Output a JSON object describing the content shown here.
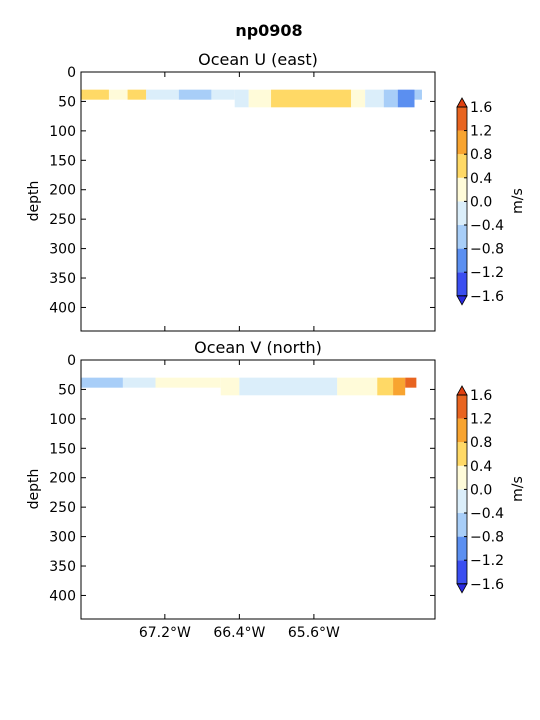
{
  "figure": {
    "title": "np0908"
  },
  "palette": {
    "levels": [
      -1.6,
      -1.2,
      -0.8,
      -0.4,
      0.0,
      0.4,
      0.8,
      1.2,
      1.6
    ],
    "colors": [
      "#3a4ef0",
      "#5b8ff0",
      "#a8cef8",
      "#dbeefa",
      "#fffbd9",
      "#ffd966",
      "#f8a430",
      "#e86420"
    ],
    "under": "#2a2ae0",
    "over": "#e04010"
  },
  "chart_data": [
    {
      "type": "heatmap",
      "title": "Ocean U (east)",
      "ylabel": "depth",
      "xlabel": "",
      "xlim": [
        -68.1,
        -64.3
      ],
      "ylim": [
        440,
        0
      ],
      "yticks": [
        0,
        50,
        100,
        150,
        200,
        250,
        300,
        350,
        400
      ],
      "xticks": [
        {
          "value": -67.2,
          "label": "67.2°W"
        },
        {
          "value": -66.4,
          "label": "66.4°W"
        },
        {
          "value": -65.6,
          "label": "65.6°W"
        }
      ],
      "colorbar": {
        "label": "m/s",
        "ticks": [
          "1.6",
          "1.2",
          "0.8",
          "0.4",
          "0.0",
          "−0.4",
          "−0.8",
          "−1.2",
          "−1.6"
        ]
      },
      "cells": [
        {
          "x0": -68.1,
          "x1": -67.8,
          "d0": 30,
          "d1": 47,
          "level": 5
        },
        {
          "x0": -67.8,
          "x1": -67.6,
          "d0": 30,
          "d1": 47,
          "level": 4
        },
        {
          "x0": -67.6,
          "x1": -67.4,
          "d0": 30,
          "d1": 47,
          "level": 5
        },
        {
          "x0": -67.4,
          "x1": -67.05,
          "d0": 30,
          "d1": 47,
          "level": 3
        },
        {
          "x0": -67.05,
          "x1": -66.7,
          "d0": 30,
          "d1": 47,
          "level": 2
        },
        {
          "x0": -66.7,
          "x1": -66.45,
          "d0": 30,
          "d1": 47,
          "level": 3
        },
        {
          "x0": -66.45,
          "x1": -66.3,
          "d0": 30,
          "d1": 60,
          "level": 3
        },
        {
          "x0": -66.3,
          "x1": -66.06,
          "d0": 30,
          "d1": 60,
          "level": 4
        },
        {
          "x0": -66.06,
          "x1": -65.2,
          "d0": 30,
          "d1": 60,
          "level": 5
        },
        {
          "x0": -65.2,
          "x1": -65.05,
          "d0": 30,
          "d1": 60,
          "level": 4
        },
        {
          "x0": -65.05,
          "x1": -64.85,
          "d0": 30,
          "d1": 60,
          "level": 3
        },
        {
          "x0": -64.85,
          "x1": -64.7,
          "d0": 30,
          "d1": 60,
          "level": 2
        },
        {
          "x0": -64.7,
          "x1": -64.52,
          "d0": 30,
          "d1": 60,
          "level": 1
        },
        {
          "x0": -64.52,
          "x1": -64.44,
          "d0": 30,
          "d1": 47,
          "level": 2
        }
      ]
    },
    {
      "type": "heatmap",
      "title": "Ocean V (north)",
      "ylabel": "depth",
      "xlabel": "",
      "xlim": [
        -68.1,
        -64.3
      ],
      "ylim": [
        440,
        0
      ],
      "yticks": [
        0,
        50,
        100,
        150,
        200,
        250,
        300,
        350,
        400
      ],
      "xticks": [
        {
          "value": -67.2,
          "label": "67.2°W"
        },
        {
          "value": -66.4,
          "label": "66.4°W"
        },
        {
          "value": -65.6,
          "label": "65.6°W"
        }
      ],
      "colorbar": {
        "label": "m/s",
        "ticks": [
          "1.6",
          "1.2",
          "0.8",
          "0.4",
          "0.0",
          "−0.4",
          "−0.8",
          "−1.2",
          "−1.6"
        ]
      },
      "cells": [
        {
          "x0": -68.1,
          "x1": -67.65,
          "d0": 30,
          "d1": 47,
          "level": 2
        },
        {
          "x0": -67.65,
          "x1": -67.3,
          "d0": 30,
          "d1": 47,
          "level": 3
        },
        {
          "x0": -67.3,
          "x1": -66.6,
          "d0": 30,
          "d1": 47,
          "level": 4
        },
        {
          "x0": -66.6,
          "x1": -66.4,
          "d0": 30,
          "d1": 60,
          "level": 4
        },
        {
          "x0": -66.4,
          "x1": -65.35,
          "d0": 30,
          "d1": 60,
          "level": 3
        },
        {
          "x0": -65.35,
          "x1": -64.92,
          "d0": 30,
          "d1": 60,
          "level": 4
        },
        {
          "x0": -64.92,
          "x1": -64.75,
          "d0": 30,
          "d1": 60,
          "level": 5
        },
        {
          "x0": -64.75,
          "x1": -64.62,
          "d0": 30,
          "d1": 60,
          "level": 6
        },
        {
          "x0": -64.62,
          "x1": -64.5,
          "d0": 30,
          "d1": 47,
          "level": 7
        }
      ]
    }
  ]
}
